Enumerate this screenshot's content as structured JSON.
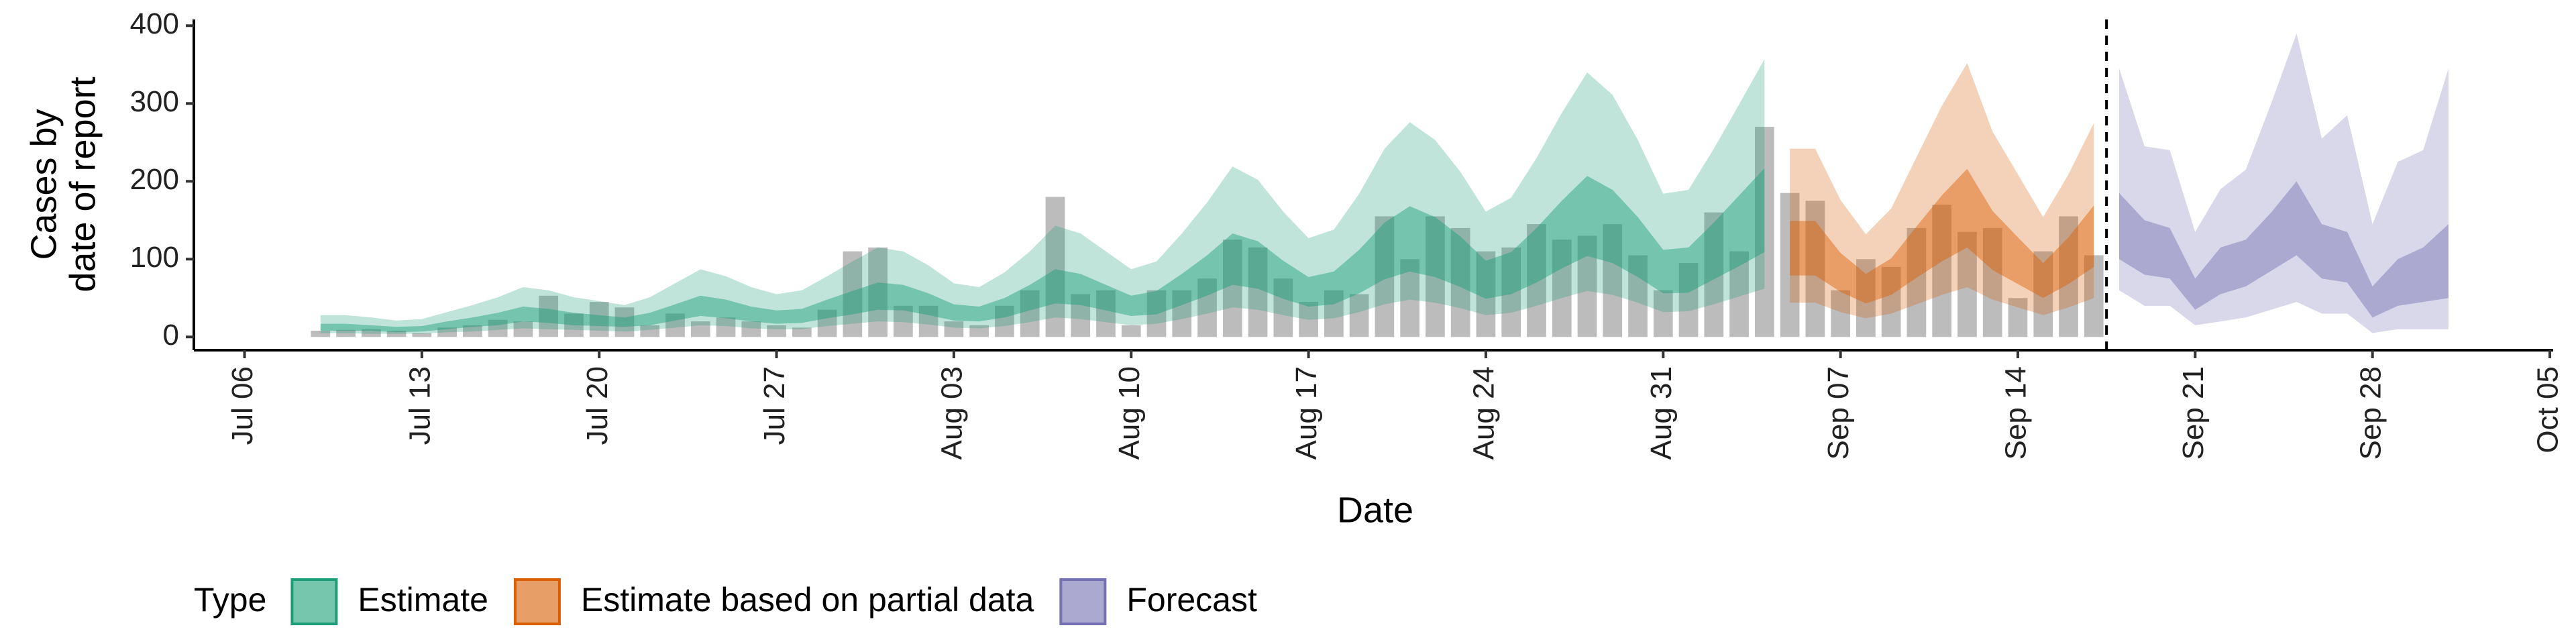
{
  "chart_data": {
    "type": "ribbon",
    "ylabel": [
      "Cases by",
      "date of report"
    ],
    "xlabel": "Date",
    "xlim": [
      "Jul 04",
      "Oct 05"
    ],
    "xticks": [
      "Jul 06",
      "Jul 13",
      "Jul 20",
      "Jul 27",
      "Aug 03",
      "Aug 10",
      "Aug 17",
      "Aug 24",
      "Aug 31",
      "Sep 07",
      "Sep 14",
      "Sep 21",
      "Sep 28",
      "Oct 05"
    ],
    "ylim": [
      -17,
      408
    ],
    "yticks": [
      0,
      100,
      200,
      300,
      400
    ],
    "cutoff": "Sep 17",
    "bars": {
      "color": "#a6a6a6",
      "x": [
        "Jul 09",
        "Jul 10",
        "Jul 11",
        "Jul 12",
        "Jul 13",
        "Jul 14",
        "Jul 15",
        "Jul 16",
        "Jul 17",
        "Jul 18",
        "Jul 19",
        "Jul 20",
        "Jul 21",
        "Jul 22",
        "Jul 23",
        "Jul 24",
        "Jul 25",
        "Jul 26",
        "Jul 27",
        "Jul 28",
        "Jul 29",
        "Jul 30",
        "Jul 31",
        "Aug 01",
        "Aug 02",
        "Aug 03",
        "Aug 04",
        "Aug 05",
        "Aug 06",
        "Aug 07",
        "Aug 08",
        "Aug 09",
        "Aug 10",
        "Aug 11",
        "Aug 12",
        "Aug 13",
        "Aug 14",
        "Aug 15",
        "Aug 16",
        "Aug 17",
        "Aug 18",
        "Aug 19",
        "Aug 20",
        "Aug 21",
        "Aug 22",
        "Aug 23",
        "Aug 24",
        "Aug 25",
        "Aug 26",
        "Aug 27",
        "Aug 28",
        "Aug 29",
        "Aug 30",
        "Aug 31",
        "Sep 01",
        "Sep 02",
        "Sep 03",
        "Sep 04",
        "Sep 05",
        "Sep 06",
        "Sep 07",
        "Sep 08",
        "Sep 09",
        "Sep 10",
        "Sep 11",
        "Sep 12",
        "Sep 13",
        "Sep 14",
        "Sep 15",
        "Sep 16",
        "Sep 17"
      ],
      "values": [
        8,
        9,
        10,
        8,
        5,
        12,
        15,
        22,
        20,
        53,
        30,
        45,
        38,
        15,
        30,
        20,
        25,
        20,
        15,
        12,
        35,
        110,
        115,
        40,
        40,
        20,
        15,
        40,
        60,
        180,
        55,
        60,
        15,
        60,
        60,
        75,
        125,
        115,
        75,
        45,
        60,
        55,
        155,
        100,
        155,
        140,
        110,
        115,
        145,
        125,
        130,
        145,
        105,
        60,
        95,
        160,
        110,
        270,
        185,
        175,
        60,
        100,
        90,
        140,
        170,
        135,
        140,
        50,
        110,
        155,
        105
      ]
    },
    "legend_title": "Type",
    "series": [
      {
        "name": "Estimate",
        "color": "#1b9e77",
        "x": [
          "Jul 09",
          "Jul 10",
          "Jul 11",
          "Jul 12",
          "Jul 13",
          "Jul 14",
          "Jul 15",
          "Jul 16",
          "Jul 17",
          "Jul 18",
          "Jul 19",
          "Jul 20",
          "Jul 21",
          "Jul 22",
          "Jul 23",
          "Jul 24",
          "Jul 25",
          "Jul 26",
          "Jul 27",
          "Jul 28",
          "Jul 29",
          "Jul 30",
          "Jul 31",
          "Aug 01",
          "Aug 02",
          "Aug 03",
          "Aug 04",
          "Aug 05",
          "Aug 06",
          "Aug 07",
          "Aug 08",
          "Aug 09",
          "Aug 10",
          "Aug 11",
          "Aug 12",
          "Aug 13",
          "Aug 14",
          "Aug 15",
          "Aug 16",
          "Aug 17",
          "Aug 18",
          "Aug 19",
          "Aug 20",
          "Aug 21",
          "Aug 22",
          "Aug 23",
          "Aug 24",
          "Aug 25",
          "Aug 26",
          "Aug 27",
          "Aug 28",
          "Aug 29",
          "Aug 30",
          "Aug 31",
          "Sep 01",
          "Sep 02",
          "Sep 03",
          "Sep 04"
        ],
        "upper90": [
          28,
          28,
          25,
          21,
          23,
          32,
          41,
          51,
          64,
          60,
          51,
          46,
          41,
          51,
          69,
          87,
          78,
          64,
          55,
          60,
          78,
          97,
          115,
          110,
          92,
          69,
          64,
          83,
          110,
          143,
          133,
          110,
          87,
          97,
          133,
          173,
          219,
          202,
          161,
          127,
          138,
          184,
          242,
          276,
          253,
          212,
          161,
          179,
          230,
          288,
          340,
          311,
          253,
          184,
          189,
          242,
          299,
          357
        ],
        "upper50": [
          17,
          17,
          15,
          13,
          14,
          20,
          25,
          31,
          39,
          36,
          31,
          28,
          25,
          31,
          42,
          53,
          48,
          39,
          34,
          36,
          48,
          59,
          70,
          67,
          56,
          42,
          39,
          50,
          67,
          87,
          81,
          67,
          53,
          59,
          81,
          105,
          133,
          123,
          98,
          77,
          84,
          112,
          147,
          168,
          154,
          129,
          98,
          109,
          140,
          175,
          207,
          189,
          154,
          112,
          115,
          147,
          182,
          217
        ],
        "lower50": [
          8,
          8,
          8,
          6,
          7,
          10,
          13,
          15,
          20,
          18,
          15,
          14,
          13,
          15,
          21,
          27,
          24,
          20,
          17,
          18,
          24,
          29,
          35,
          34,
          28,
          21,
          20,
          25,
          34,
          43,
          41,
          34,
          27,
          29,
          41,
          53,
          67,
          62,
          49,
          39,
          42,
          56,
          74,
          84,
          77,
          64,
          49,
          55,
          70,
          88,
          104,
          95,
          77,
          56,
          57,
          74,
          91,
          109
        ],
        "lower90": [
          5,
          5,
          4,
          4,
          4,
          6,
          7,
          9,
          11,
          10,
          9,
          8,
          7,
          9,
          12,
          15,
          14,
          11,
          10,
          10,
          14,
          17,
          20,
          19,
          16,
          12,
          11,
          14,
          19,
          25,
          23,
          19,
          15,
          17,
          23,
          30,
          38,
          35,
          28,
          22,
          24,
          32,
          42,
          48,
          44,
          37,
          28,
          31,
          40,
          50,
          59,
          54,
          44,
          32,
          33,
          42,
          52,
          62
        ]
      },
      {
        "name": "Estimate based on partial data",
        "color": "#d95f02",
        "x": [
          "Sep 05",
          "Sep 06",
          "Sep 07",
          "Sep 08",
          "Sep 09",
          "Sep 10",
          "Sep 11",
          "Sep 12",
          "Sep 13",
          "Sep 14",
          "Sep 15",
          "Sep 16",
          "Sep 17"
        ],
        "upper90": [
          242,
          242,
          176,
          132,
          165,
          231,
          297,
          352,
          264,
          209,
          154,
          209,
          275
        ],
        "upper50": [
          149,
          149,
          108,
          81,
          101,
          142,
          182,
          216,
          162,
          128,
          95,
          128,
          169
        ],
        "lower50": [
          79,
          79,
          58,
          43,
          54,
          76,
          97,
          115,
          86,
          68,
          50,
          68,
          90
        ],
        "lower90": [
          44,
          44,
          32,
          24,
          30,
          42,
          54,
          64,
          48,
          38,
          28,
          38,
          50
        ]
      },
      {
        "name": "Forecast",
        "color": "#7570b3",
        "x": [
          "Sep 18",
          "Sep 19",
          "Sep 20",
          "Sep 21",
          "Sep 22",
          "Sep 23",
          "Sep 24",
          "Sep 25",
          "Sep 26",
          "Sep 27",
          "Sep 28",
          "Sep 29",
          "Sep 30",
          "Oct 01"
        ],
        "upper90": [
          345,
          245,
          240,
          135,
          190,
          215,
          300,
          390,
          255,
          285,
          145,
          225,
          240,
          345
        ],
        "upper50": [
          185,
          150,
          140,
          75,
          115,
          125,
          160,
          200,
          145,
          135,
          65,
          100,
          115,
          145
        ],
        "lower50": [
          100,
          80,
          75,
          35,
          55,
          65,
          85,
          105,
          75,
          70,
          25,
          40,
          45,
          50
        ],
        "lower90": [
          60,
          40,
          40,
          15,
          20,
          25,
          35,
          45,
          30,
          30,
          5,
          10,
          10,
          10
        ]
      }
    ]
  }
}
